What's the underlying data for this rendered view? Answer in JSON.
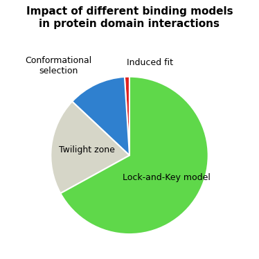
{
  "chart_data": {
    "type": "pie",
    "title": "Impact of different binding models in protein domain interactions",
    "categories": [
      "Induced fit",
      "Conformational selection",
      "Twilight zone",
      "Lock-and-Key model"
    ],
    "values": [
      1,
      12,
      20,
      67
    ],
    "colors": [
      "#e0201e",
      "#2f80cf",
      "#d6d6c8",
      "#5fd84a"
    ]
  }
}
